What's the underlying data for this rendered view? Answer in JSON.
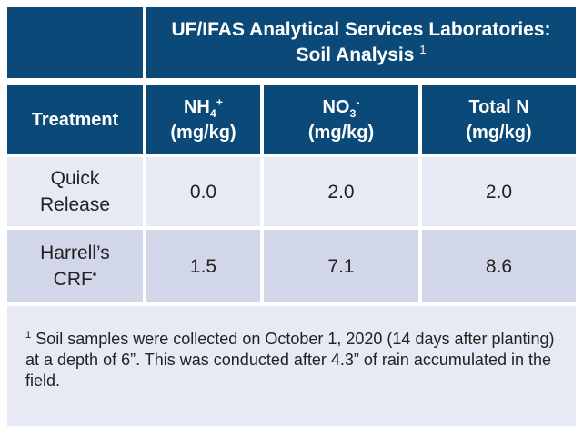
{
  "title": {
    "line1": "UF/IFAS Analytical Services Laboratories:",
    "line2": "Soil Analysis",
    "footnote_ref": "1"
  },
  "columns": {
    "treatment": "Treatment",
    "nh4": {
      "base": "NH",
      "sub": "4",
      "sup": "+",
      "unit": "(mg/kg)"
    },
    "no3": {
      "base": "NO",
      "sub": "3",
      "sup": "-",
      "unit": "(mg/kg)"
    },
    "total": {
      "label": "Total N",
      "unit": "(mg/kg)"
    }
  },
  "rows": [
    {
      "line1": "Quick",
      "line2": "Release",
      "mark": "",
      "nh4": "0.0",
      "no3": "2.0",
      "total": "2.0"
    },
    {
      "line1": "Harrell’s",
      "line2": "CRF",
      "mark": "▪",
      "nh4": "1.5",
      "no3": "7.1",
      "total": "8.6"
    }
  ],
  "footnote": {
    "ref": "1",
    "text": " Soil samples were collected on October 1, 2020 (14 days after planting) at a depth of 6”. This was conducted after 4.3” of rain accumulated in the field."
  },
  "colors": {
    "header": "#0b4a78",
    "row_light": "#e7eaf4",
    "row_dark": "#d1d6e9"
  }
}
